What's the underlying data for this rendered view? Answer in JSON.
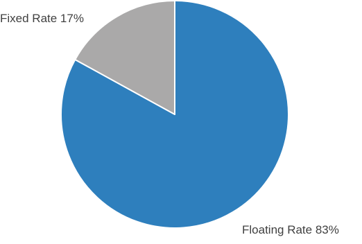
{
  "chart_data": {
    "type": "pie",
    "title": "",
    "slices": [
      {
        "label": "Floating Rate 83%",
        "name": "Floating Rate",
        "value": 83,
        "color": "#2e7fbd"
      },
      {
        "label": "Fixed Rate 17%",
        "name": "Fixed Rate",
        "value": 17,
        "color": "#aaa9a9"
      }
    ],
    "start": "12 o'clock",
    "direction": "clockwise",
    "slice_border_color": "#ffffff",
    "legend": "none"
  }
}
